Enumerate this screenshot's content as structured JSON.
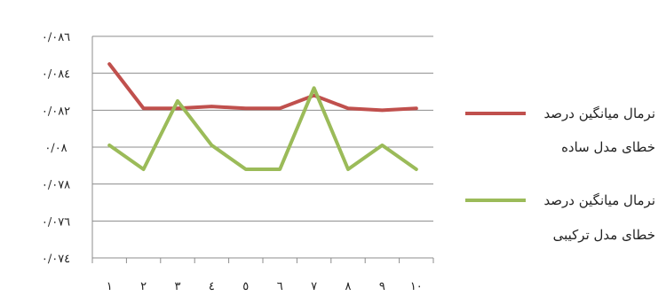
{
  "chart_data": {
    "type": "line",
    "title": "",
    "xlabel": "",
    "ylabel": "",
    "grid": true,
    "legend_position": "right",
    "x": [
      "١",
      "٢",
      "٣",
      "٤",
      "٥",
      "٦",
      "٧",
      "٨",
      "٩",
      "١٠"
    ],
    "ylim": [
      0.074,
      0.086
    ],
    "ytick_values": [
      0.074,
      0.076,
      0.078,
      0.08,
      0.082,
      0.084,
      0.086
    ],
    "ytick_labels": [
      "٠/٠٧٤",
      "٠/٠٧٦",
      "٠/٠٧٨",
      "٠/٠٨",
      "٠/٠٨٢",
      "٠/٠٨٤",
      "٠/٠٨٦"
    ],
    "series": [
      {
        "name_lines": [
          "نرمال میانگین درصد",
          "خطای مدل ساده"
        ],
        "color": "#c0504d",
        "values": [
          0.0845,
          0.0821,
          0.0821,
          0.0822,
          0.0821,
          0.0821,
          0.0828,
          0.0821,
          0.082,
          0.0821
        ]
      },
      {
        "name_lines": [
          "نرمال میانگین درصد",
          "خطای مدل ترکیبی"
        ],
        "color": "#9bbb59",
        "values": [
          0.0801,
          0.0788,
          0.0825,
          0.0801,
          0.0788,
          0.0788,
          0.0832,
          0.0788,
          0.0801,
          0.0788
        ]
      }
    ]
  }
}
